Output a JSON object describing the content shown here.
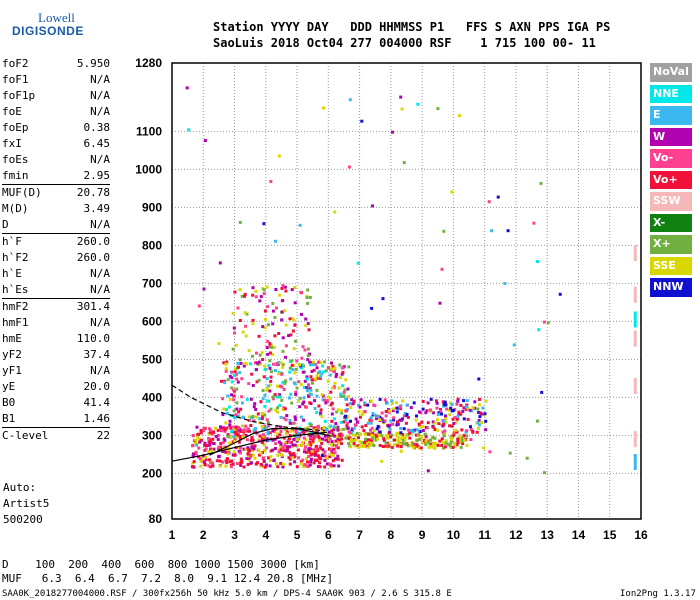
{
  "logo": {
    "top": "Lowell",
    "bottom": "DIGISONDE"
  },
  "header": {
    "line1": "Station YYYY DAY   DDD HHMMSS P1   FFS S AXN PPS IGA PS",
    "line2": "SaoLuis 2018 Oct04 277 004000 RSF    1 715 100 00- 11"
  },
  "params": [
    {
      "label": "foF2",
      "value": "5.950"
    },
    {
      "label": "foF1",
      "value": "N/A"
    },
    {
      "label": "foF1p",
      "value": "N/A"
    },
    {
      "label": "foE",
      "value": "N/A"
    },
    {
      "label": "foEp",
      "value": "0.38"
    },
    {
      "label": "fxI",
      "value": "6.45"
    },
    {
      "label": "foEs",
      "value": "N/A"
    },
    {
      "label": "fmin",
      "value": "2.95"
    },
    {
      "label": "MUF(D)",
      "value": "20.78",
      "sep": true
    },
    {
      "label": "M(D)",
      "value": "3.49"
    },
    {
      "label": "D",
      "value": "N/A"
    },
    {
      "label": "h`F",
      "value": "260.0",
      "sep": true
    },
    {
      "label": "h`F2",
      "value": "260.0"
    },
    {
      "label": "h`E",
      "value": "N/A"
    },
    {
      "label": "h`Es",
      "value": "N/A"
    },
    {
      "label": "hmF2",
      "value": "301.4",
      "sep": true
    },
    {
      "label": "hmF1",
      "value": "N/A"
    },
    {
      "label": "hmE",
      "value": "110.0"
    },
    {
      "label": "yF2",
      "value": "37.4"
    },
    {
      "label": "yF1",
      "value": "N/A"
    },
    {
      "label": "yE",
      "value": "20.0"
    },
    {
      "label": "B0",
      "value": "41.4"
    },
    {
      "label": "B1",
      "value": "1.46"
    },
    {
      "label": "C-level",
      "value": "22",
      "sep": true
    }
  ],
  "auto": [
    "Auto:",
    "Artist5",
    "500200"
  ],
  "legend": [
    {
      "label": "NoVal",
      "color": "#a0a0a0"
    },
    {
      "label": "NNE",
      "color": "#00e8e8"
    },
    {
      "label": "E",
      "color": "#3cb8f0"
    },
    {
      "label": "W",
      "color": "#b000b0"
    },
    {
      "label": "Vo-",
      "color": "#ff4090"
    },
    {
      "label": "Vo+",
      "color": "#f0103a"
    },
    {
      "label": "SSW",
      "color": "#f4b8b8"
    },
    {
      "label": "X-",
      "color": "#108010"
    },
    {
      "label": "X+",
      "color": "#70b040"
    },
    {
      "label": "SSE",
      "color": "#d8d800"
    },
    {
      "label": "NNW",
      "color": "#1010d0"
    }
  ],
  "distance_line": "D    100  200  400  600  800 1000 1500 3000 [km]",
  "muf_line": "MUF   6.3  6.4  6.7  7.2  8.0  9.1 12.4 20.8 [MHz]",
  "footer_left": "SAA0K_2018277004000.RSF / 300fx256h 50 kHz 5.0 km / DPS-4 SAA0K 903 / 2.6 S 315.8 E",
  "footer_right": "Ion2Png 1.3.17",
  "chart_data": {
    "type": "scatter",
    "title": "",
    "xlabel": "",
    "ylabel": "",
    "xlim": [
      1,
      16
    ],
    "ylim": [
      80,
      1280
    ],
    "x_ticks": [
      1,
      2,
      3,
      4,
      5,
      6,
      7,
      8,
      9,
      10,
      11,
      12,
      13,
      14,
      15,
      16
    ],
    "y_ticks": [
      80,
      200,
      300,
      400,
      500,
      600,
      700,
      800,
      900,
      1000,
      1100,
      1280
    ],
    "grid": true,
    "clusters": [
      {
        "fmin": 1.6,
        "fmax": 6.4,
        "hmin": 220,
        "hmax": 330,
        "n": 520,
        "colors": [
          "#f0103a",
          "#ff4090",
          "#b000b0",
          "#f0103a",
          "#d8d800"
        ]
      },
      {
        "fmin": 2.5,
        "fmax": 6.6,
        "hmin": 300,
        "hmax": 500,
        "n": 380,
        "colors": [
          "#d8d800",
          "#70b040",
          "#ff4090",
          "#b000b0",
          "#00e8e8",
          "#f0103a",
          "#3cb8f0"
        ]
      },
      {
        "fmin": 2.9,
        "fmax": 5.4,
        "hmin": 480,
        "hmax": 700,
        "n": 120,
        "colors": [
          "#d8d800",
          "#ff4090",
          "#b000b0",
          "#70b040",
          "#f0103a"
        ]
      },
      {
        "fmin": 6.5,
        "fmax": 10.4,
        "hmin": 270,
        "hmax": 310,
        "n": 220,
        "colors": [
          "#d8d800",
          "#d8d800",
          "#70b040",
          "#f0103a"
        ]
      },
      {
        "fmin": 6.5,
        "fmax": 11.0,
        "hmin": 310,
        "hmax": 400,
        "n": 260,
        "colors": [
          "#b000b0",
          "#f0103a",
          "#ff4090",
          "#3cb8f0",
          "#d8d800",
          "#1010d0"
        ]
      },
      {
        "fmin": 1.4,
        "fmax": 13.5,
        "hmin": 200,
        "hmax": 1270,
        "n": 70,
        "colors": [
          "#3cb8f0",
          "#00e8e8",
          "#d8d800",
          "#b000b0",
          "#1010d0",
          "#70b040",
          "#ff4090"
        ]
      }
    ],
    "traces": [
      {
        "name": "",
        "style": "solid",
        "points": [
          [
            1,
            232
          ],
          [
            2,
            248
          ],
          [
            3,
            268
          ],
          [
            4,
            288
          ],
          [
            5,
            300
          ],
          [
            5.95,
            308
          ]
        ]
      },
      {
        "name": "",
        "style": "solid",
        "points": [
          [
            2.2,
            248
          ],
          [
            3,
            280
          ],
          [
            3.6,
            305
          ],
          [
            4.2,
            318
          ],
          [
            5.0,
            318
          ],
          [
            5.6,
            308
          ],
          [
            6.1,
            298
          ]
        ]
      },
      {
        "name": "",
        "style": "dashed",
        "points": [
          [
            1.0,
            432
          ],
          [
            1.6,
            400
          ],
          [
            2.6,
            360
          ],
          [
            3.6,
            336
          ],
          [
            4.6,
            322
          ],
          [
            5.4,
            316
          ],
          [
            5.9,
            312
          ]
        ]
      }
    ],
    "edge_marks": [
      {
        "f": 15.8,
        "h": 780,
        "color": "#f4b8b8"
      },
      {
        "f": 15.8,
        "h": 670,
        "color": "#f4b8b8"
      },
      {
        "f": 15.8,
        "h": 605,
        "color": "#00e8e8"
      },
      {
        "f": 15.8,
        "h": 555,
        "color": "#f4b8b8"
      },
      {
        "f": 15.8,
        "h": 430,
        "color": "#f4b8b8"
      },
      {
        "f": 15.8,
        "h": 290,
        "color": "#f4b8b8"
      },
      {
        "f": 15.8,
        "h": 230,
        "color": "#3cb8f0"
      }
    ]
  }
}
